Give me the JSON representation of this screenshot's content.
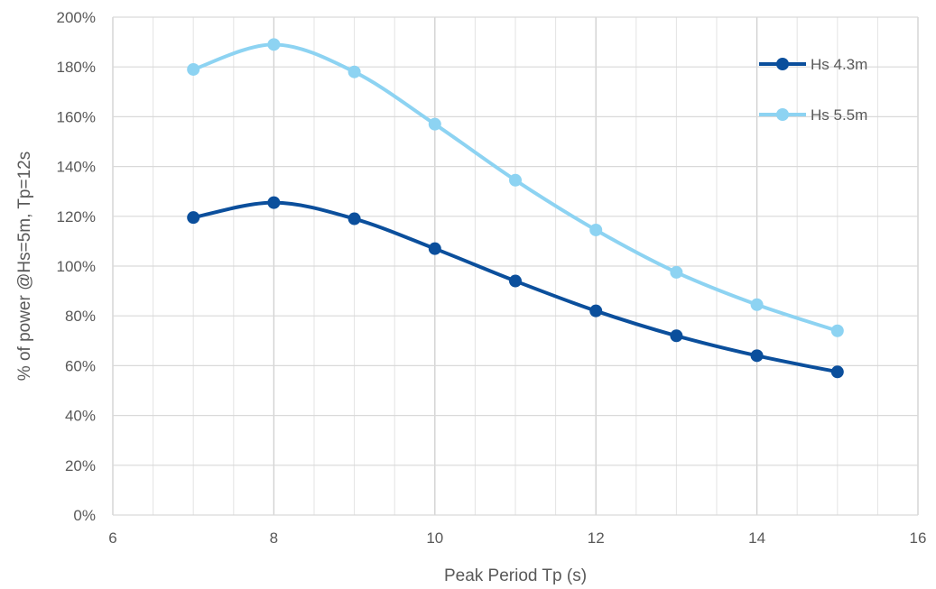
{
  "chart_data": {
    "type": "line",
    "title": "",
    "xlabel": "Peak Period Tp (s)",
    "ylabel": "% of power @Hs=5m, Tp=12s",
    "xlim": [
      6,
      16
    ],
    "ylim": [
      0,
      200
    ],
    "x_ticks": [
      "6",
      "8",
      "10",
      "12",
      "14",
      "16"
    ],
    "y_ticks": [
      "0%",
      "20%",
      "40%",
      "60%",
      "80%",
      "100%",
      "120%",
      "140%",
      "160%",
      "180%",
      "200%"
    ],
    "grid": true,
    "minor_x_grid": true,
    "legend_position": "top-right",
    "smooth": true,
    "series": [
      {
        "name": "Hs 4.3m",
        "color": "#0B4F9C",
        "x": [
          7,
          8,
          9,
          10,
          11,
          12,
          13,
          14,
          15
        ],
        "y": [
          119.5,
          125.5,
          119,
          107,
          94,
          82,
          72,
          64,
          57.5
        ]
      },
      {
        "name": "Hs 5.5m",
        "color": "#8DD3F2",
        "x": [
          7,
          8,
          9,
          10,
          11,
          12,
          13,
          14,
          15
        ],
        "y": [
          179,
          189,
          178,
          157,
          134.5,
          114.5,
          97.5,
          84.5,
          74
        ]
      }
    ]
  }
}
